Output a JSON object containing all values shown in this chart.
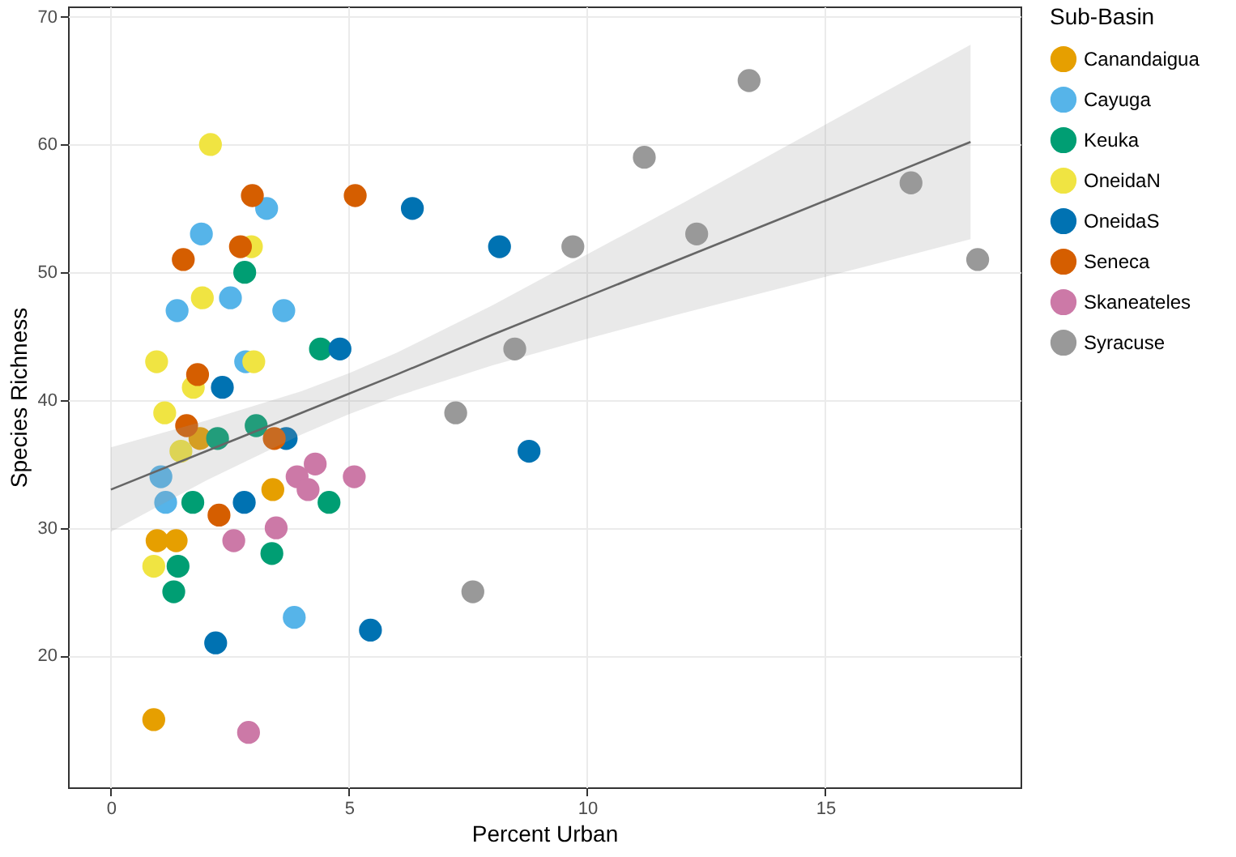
{
  "chart_data": {
    "type": "scatter",
    "xlabel": "Percent Urban",
    "ylabel": "Species Richness",
    "legend_title": "Sub-Basin",
    "xlim": [
      -0.9,
      19.1
    ],
    "ylim": [
      9.7,
      70.8
    ],
    "xticks": [
      0,
      5,
      10,
      15
    ],
    "yticks": [
      20,
      30,
      40,
      50,
      60,
      70
    ],
    "grid": true,
    "legend": "right",
    "marker": "circle",
    "series": [
      {
        "name": "Canandaigua",
        "color": "#e69f00",
        "x": [
          1.87,
          3.4,
          0.97,
          1.37,
          0.9
        ],
        "values": [
          37,
          33,
          29,
          29,
          15
        ]
      },
      {
        "name": "Cayuga",
        "color": "#56b4e9",
        "x": [
          3.27,
          1.9,
          2.51,
          1.39,
          3.63,
          2.83,
          1.05,
          1.15,
          3.85
        ],
        "values": [
          55,
          53,
          48,
          47,
          47,
          43,
          34,
          32,
          23
        ]
      },
      {
        "name": "Keuka",
        "color": "#009e73",
        "x": [
          2.81,
          4.4,
          3.05,
          2.24,
          1.72,
          4.58,
          3.38,
          1.41,
          1.32
        ],
        "values": [
          50,
          44,
          38,
          37,
          32,
          32,
          28,
          27,
          25
        ]
      },
      {
        "name": "OneidaN",
        "color": "#f0e442",
        "x": [
          2.09,
          2.95,
          1.92,
          0.96,
          3.0,
          1.73,
          1.13,
          1.47,
          0.9
        ],
        "values": [
          60,
          52,
          48,
          43,
          43,
          41,
          39,
          36,
          27
        ]
      },
      {
        "name": "OneidaS",
        "color": "#0072b2",
        "x": [
          6.33,
          8.16,
          4.81,
          2.34,
          3.68,
          8.78,
          2.8,
          5.45,
          2.2
        ],
        "values": [
          55,
          52,
          44,
          41,
          37,
          36,
          32,
          22,
          21
        ]
      },
      {
        "name": "Seneca",
        "color": "#d55e00",
        "x": [
          2.97,
          5.13,
          2.72,
          1.52,
          1.82,
          1.59,
          3.43,
          2.27
        ],
        "values": [
          56,
          56,
          52,
          51,
          42,
          38,
          37,
          31
        ]
      },
      {
        "name": "Skaneateles",
        "color": "#cc79a7",
        "x": [
          4.29,
          3.91,
          5.11,
          4.14,
          3.47,
          2.58,
          2.89
        ],
        "values": [
          35,
          34,
          34,
          33,
          30,
          29,
          14
        ]
      },
      {
        "name": "Syracuse",
        "color": "#999999",
        "x": [
          13.4,
          11.2,
          16.8,
          12.3,
          9.7,
          18.2,
          8.48,
          7.24,
          7.6
        ],
        "values": [
          65,
          59,
          57,
          53,
          52,
          51,
          44,
          39,
          25
        ]
      },
      {
        "type": "line",
        "marker": "none",
        "color": "#666666",
        "x": [
          0,
          2,
          4,
          5,
          6,
          8,
          10,
          12,
          14,
          16,
          18.05
        ],
        "values": [
          33,
          36.0,
          39.0,
          40.5,
          42.0,
          45.1,
          48.1,
          51.1,
          54.1,
          57.1,
          60.2
        ],
        "lower": [
          29.7,
          33.7,
          37.3,
          38.9,
          40.3,
          42.7,
          44.8,
          46.8,
          48.7,
          50.6,
          52.6
        ],
        "upper": [
          36.3,
          38.4,
          40.7,
          42.1,
          43.7,
          47.4,
          51.4,
          55.4,
          59.5,
          63.6,
          67.8
        ]
      }
    ]
  }
}
